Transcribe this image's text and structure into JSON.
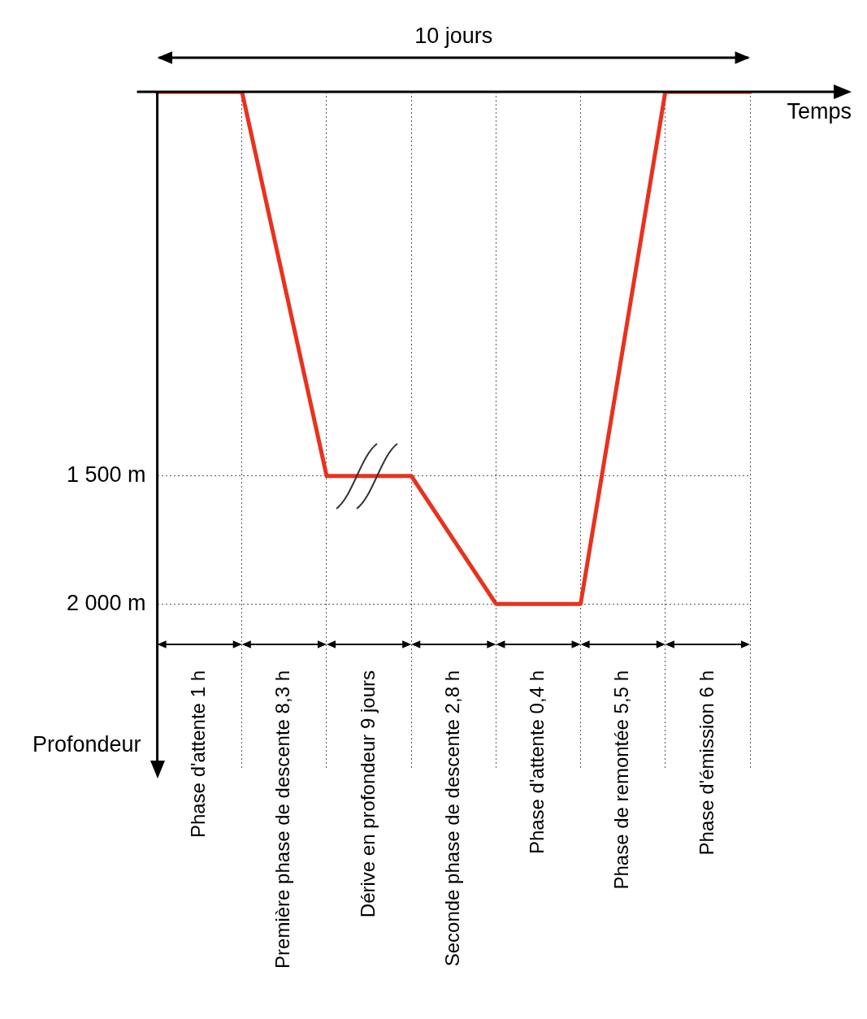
{
  "chart_data": {
    "type": "line",
    "xlabel": "Temps",
    "ylabel": "Profondeur",
    "categories": [
      null,
      null,
      null,
      null,
      null,
      null,
      null,
      null
    ],
    "series": [
      {
        "color": "#e8321e",
        "values": [
          0,
          0,
          1500,
          1500,
          2000,
          2000,
          0,
          0
        ]
      }
    ],
    "ylim": [
      2650,
      0
    ],
    "yticks": [
      {
        "value": 1500,
        "label": "1 500 m"
      },
      {
        "value": 2000,
        "label": "2 000 m"
      }
    ],
    "tick_labels": "y",
    "grid": true,
    "legend": false,
    "marker": "none",
    "line_style": "solid",
    "annotations": [
      "10 jours",
      "Phase d'attente 1 h",
      "Première phase de descente 8,3 h",
      "Dérive en profondeur 9 jours",
      "Seconde phase de descente 2,8 h",
      "Phase d'attente 0,4 h",
      "Phase de remontée 5,5 h",
      "Phase d'émission 6 h"
    ]
  }
}
